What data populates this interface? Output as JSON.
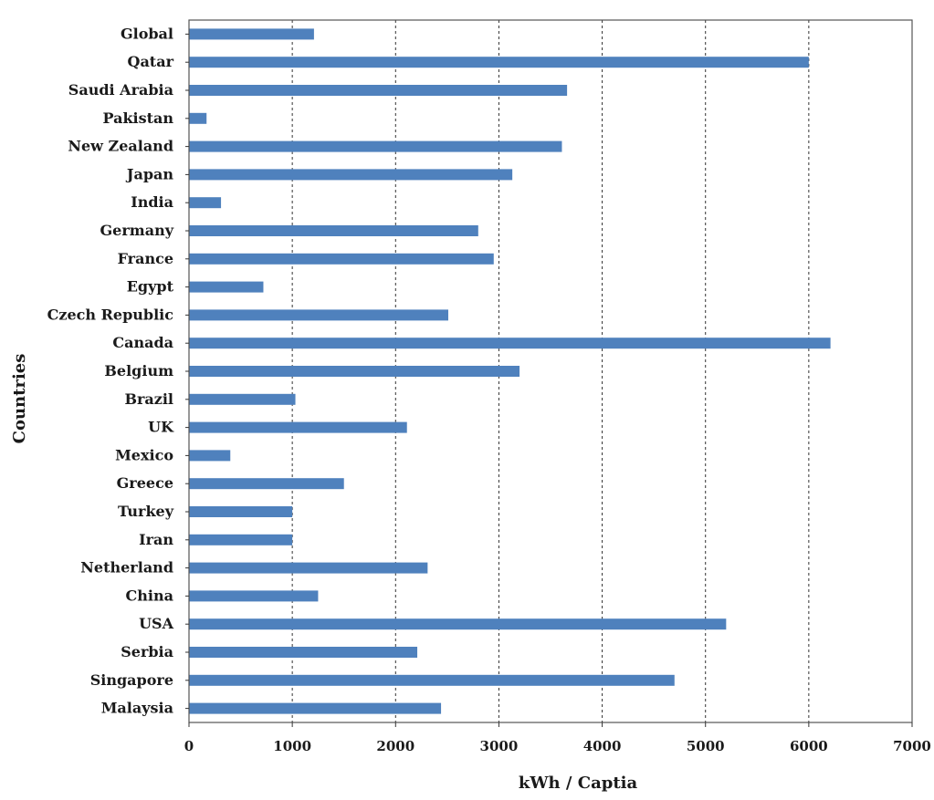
{
  "chart_data": {
    "type": "bar",
    "orientation": "horizontal",
    "categories": [
      "Global",
      "Qatar",
      "Saudi Arabia",
      "Pakistan",
      "New Zealand",
      "Japan",
      "India",
      "Germany",
      "France",
      "Egypt",
      "Czech Republic",
      "Canada",
      "Belgium",
      "Brazil",
      "UK",
      "Mexico",
      "Greece",
      "Turkey",
      "Iran",
      "Netherland",
      "China",
      "USA",
      "Serbia",
      "Singapore",
      "Malaysia"
    ],
    "values": [
      1210,
      6000,
      3660,
      170,
      3610,
      3130,
      310,
      2800,
      2950,
      720,
      2510,
      6210,
      3200,
      1030,
      2110,
      400,
      1500,
      1000,
      1000,
      2310,
      1250,
      5200,
      2210,
      4700,
      2440
    ],
    "xlabel": "kWh / Captia",
    "ylabel": "Countries",
    "xlim": [
      0,
      7000
    ],
    "xticks": [
      0,
      1000,
      2000,
      3000,
      4000,
      5000,
      6000,
      7000
    ],
    "xtick_labels": [
      "0",
      "1000",
      "2000",
      "3000",
      "4000",
      "5000",
      "6000",
      "7000"
    ],
    "grid": "vertical dashed",
    "bar_color": "#4f81bd"
  }
}
